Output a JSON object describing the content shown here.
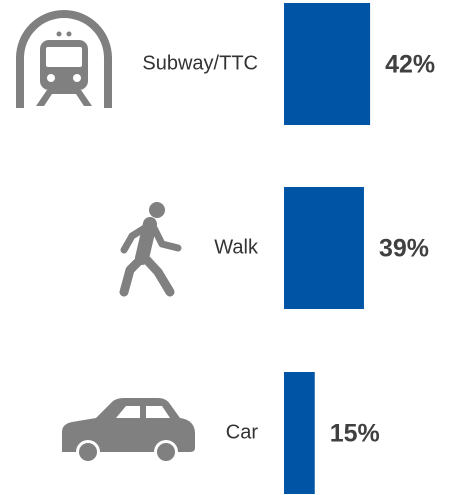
{
  "chart_data": {
    "type": "bar",
    "orientation": "horizontal",
    "categories": [
      "Subway/TTC",
      "Walk",
      "Car"
    ],
    "values": [
      42,
      39,
      15
    ],
    "value_labels": [
      "42%",
      "39%",
      "15%"
    ],
    "color": "#0054a6"
  }
}
